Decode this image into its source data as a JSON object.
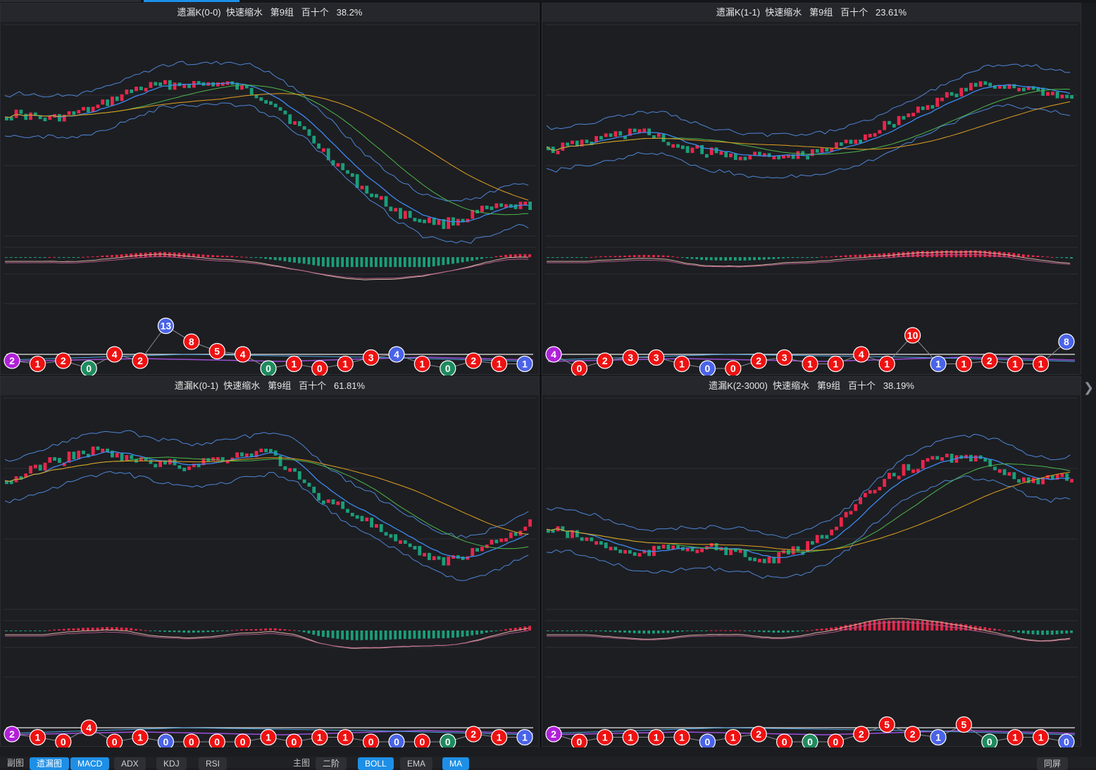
{
  "panels": [
    {
      "title": "遗漏K(0-0)  快速缩水   第9组   百十个   38.2%",
      "counts": [
        "2",
        "1",
        "2",
        "0",
        "4",
        "2",
        "13",
        "8",
        "5",
        "4",
        "0",
        "1",
        "0",
        "1",
        "3",
        "4",
        "1",
        "0",
        "2",
        "1",
        "1"
      ]
    },
    {
      "title": "遗漏K(1-1)  快速缩水   第9组   百十个   23.61%",
      "counts": [
        "4",
        "0",
        "2",
        "3",
        "3",
        "1",
        "0",
        "0",
        "2",
        "3",
        "1",
        "1",
        "4",
        "1",
        "10",
        "1",
        "1",
        "2",
        "1",
        "1",
        "8"
      ]
    },
    {
      "title": "遗漏K(0-1)  快速缩水   第9组   百十个   61.81%",
      "counts": [
        "2",
        "1",
        "0",
        "4",
        "0",
        "1",
        "0",
        "0",
        "0",
        "0",
        "1",
        "0",
        "1",
        "1",
        "0",
        "0",
        "0",
        "0",
        "2",
        "1",
        "1"
      ]
    },
    {
      "title": "遗漏K(2-3000)  快速缩水   第9组   百十个   38.19%",
      "counts": [
        "2",
        "0",
        "1",
        "1",
        "1",
        "1",
        "0",
        "1",
        "2",
        "0",
        "0",
        "0",
        "2",
        "5",
        "2",
        "1",
        "5",
        "0",
        "1",
        "1",
        "0"
      ]
    }
  ],
  "bottom": {
    "sub_label": "副图",
    "sub_buttons": [
      "遗漏图",
      "MACD",
      "ADX",
      "KDJ",
      "RSI"
    ],
    "main_label": "主图",
    "main_buttons": [
      "二阶",
      "BOLL",
      "EMA",
      "MA"
    ],
    "right_button": "同屏"
  },
  "colors": {
    "up": "#e8264b",
    "down": "#1a9e7a",
    "accent": "#1e8fe6",
    "bubble_red": "#ee1111",
    "bubble_blue": "#4a63e8",
    "bubble_purple": "#b020d8",
    "bubble_green": "#1f8a5e"
  }
}
